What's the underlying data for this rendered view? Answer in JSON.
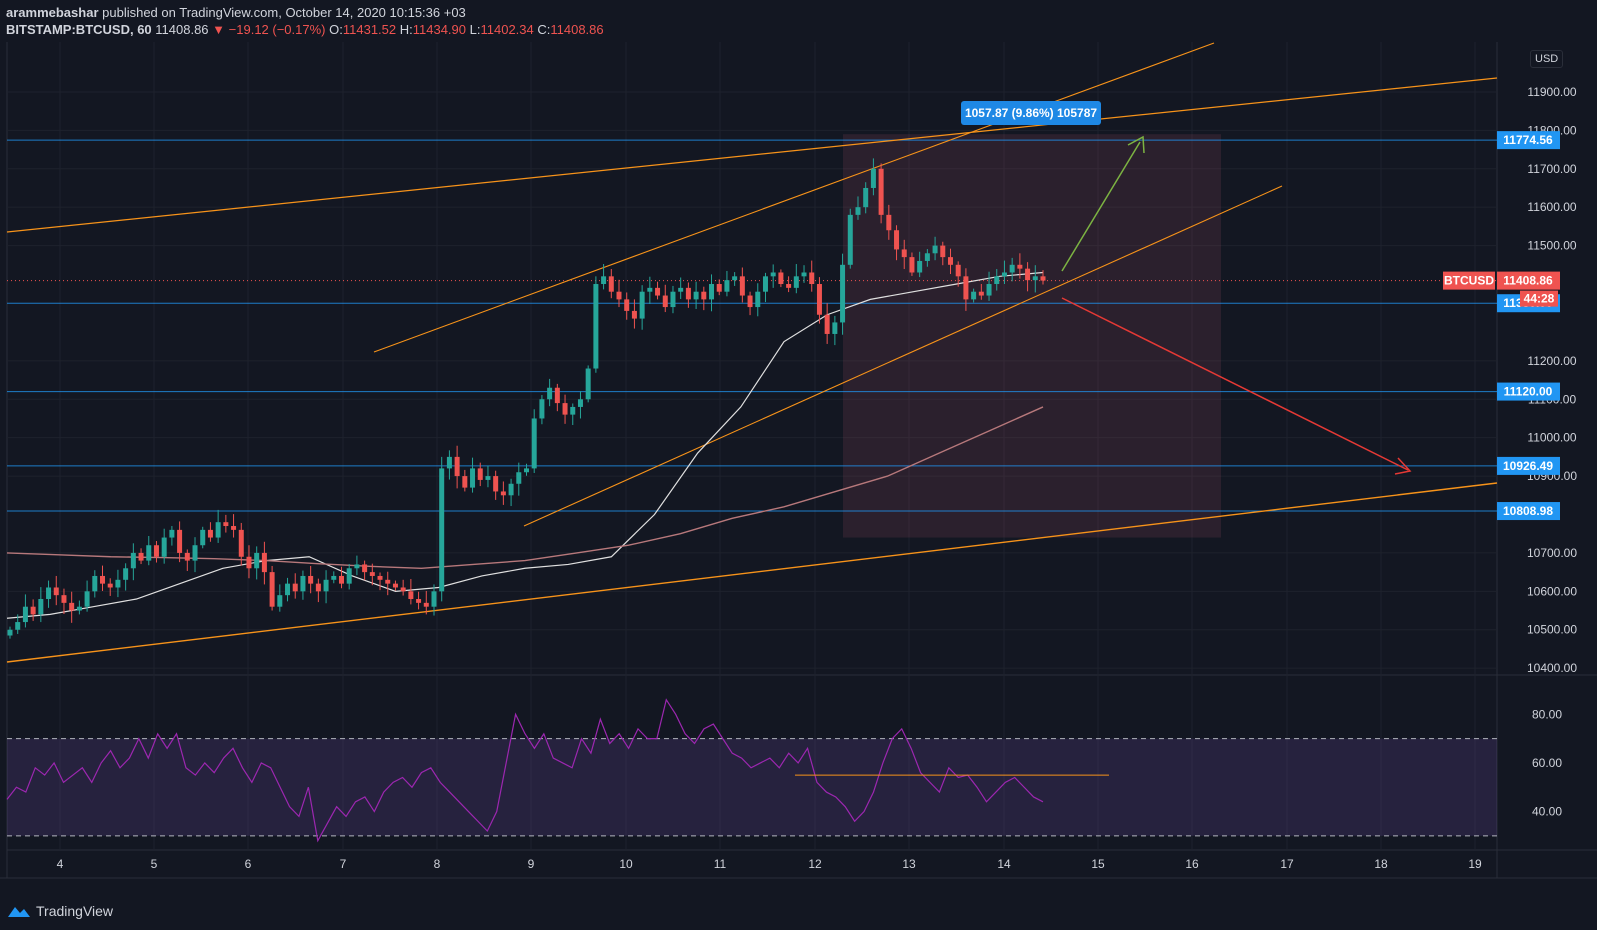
{
  "header": {
    "publisher": "arammebashar",
    "published_text": "published on TradingView.com, October 14, 2020 10:15:36 +03",
    "symbol": "BITSTAMP:BTCUSD, 60",
    "last": "11408.86",
    "change": "▼ −19.12 (−0.17%)",
    "o_label": "O:",
    "o_val": "11431.52",
    "h_label": "H:",
    "h_val": "11434.90",
    "l_label": "L:",
    "l_val": "11402.34",
    "c_label": "C:",
    "c_val": "11408.86"
  },
  "currency": "USD",
  "footer": {
    "brand": "TradingView"
  },
  "colors": {
    "bg": "#131722",
    "up": "#26a69a",
    "down": "#ef5350",
    "trend": "#f7931a",
    "level": "#2196f3",
    "rsi": "#9c27b0",
    "ma_fast": "#e0e0e0",
    "ma_slow": "#b7787b"
  },
  "chart_data": {
    "type": "candlestick",
    "timeframe": "60",
    "x_ticks": [
      "4",
      "5",
      "6",
      "7",
      "8",
      "9",
      "10",
      "11",
      "12",
      "13",
      "14",
      "15",
      "16",
      "17",
      "18",
      "19"
    ],
    "y_ticks": [
      "11900.00",
      "11800.00",
      "11700.00",
      "11600.00",
      "11500.00",
      "11200.00",
      "11100.00",
      "11000.00",
      "10900.00",
      "10700.00",
      "10600.00",
      "10500.00",
      "10400.00"
    ],
    "ylim": [
      10390,
      12030
    ],
    "price_tags": [
      {
        "label": "11774.56",
        "value": 11774.56,
        "kind": "level"
      },
      {
        "label": "11350.00",
        "value": 11350.0,
        "kind": "level"
      },
      {
        "label": "11120.00",
        "value": 11120.0,
        "kind": "level"
      },
      {
        "label": "10926.49",
        "value": 10926.49,
        "kind": "level"
      },
      {
        "label": "10808.98",
        "value": 10808.98,
        "kind": "level"
      }
    ],
    "current": {
      "symbol": "BTCUSD",
      "price": "11408.86",
      "value": 11408.86,
      "countdown": "44:28"
    },
    "range_label": "1057.87 (9.86%) 105787",
    "candles_close": [
      10500,
      10520,
      10560,
      10540,
      10580,
      10610,
      10590,
      10570,
      10550,
      10560,
      10600,
      10640,
      10620,
      10610,
      10630,
      10660,
      10700,
      10680,
      10720,
      10690,
      10740,
      10760,
      10700,
      10680,
      10720,
      10760,
      10740,
      10780,
      10770,
      10760,
      10690,
      10660,
      10700,
      10650,
      10560,
      10590,
      10620,
      10600,
      10640,
      10620,
      10600,
      10630,
      10640,
      10620,
      10660,
      10670,
      10650,
      10640,
      10630,
      10620,
      10610,
      10600,
      10580,
      10570,
      10560,
      10600,
      10920,
      10950,
      10900,
      10870,
      10920,
      10890,
      10900,
      10860,
      10850,
      10880,
      10910,
      10920,
      11050,
      11100,
      11130,
      11090,
      11060,
      11080,
      11100,
      11180,
      11400,
      11420,
      11380,
      11360,
      11330,
      11310,
      11380,
      11390,
      11370,
      11340,
      11380,
      11390,
      11360,
      11380,
      11360,
      11400,
      11380,
      11410,
      11420,
      11370,
      11340,
      11380,
      11420,
      11430,
      11400,
      11390,
      11420,
      11430,
      11400,
      11320,
      11270,
      11300,
      11450,
      11580,
      11600,
      11650,
      11700,
      11580,
      11540,
      11490,
      11470,
      11430,
      11460,
      11480,
      11500,
      11470,
      11450,
      11420,
      11360,
      11380,
      11370,
      11400,
      11420,
      11430,
      11450,
      11440,
      11410,
      11420,
      11408.86
    ],
    "ma_fast": [
      10530,
      10540,
      10560,
      10580,
      10620,
      10660,
      10680,
      10690,
      10640,
      10600,
      10610,
      10640,
      10660,
      10670,
      10690,
      10800,
      10960,
      11080,
      11250,
      11320,
      11360,
      11380,
      11400,
      11420,
      11430
    ],
    "ma_slow": [
      10700,
      10695,
      10690,
      10688,
      10685,
      10680,
      10672,
      10665,
      10660,
      10670,
      10680,
      10700,
      10720,
      10750,
      10790,
      10820,
      10860,
      10900,
      10960,
      11020,
      11080
    ],
    "rsi": {
      "ylim": [
        25,
        90
      ],
      "y_ticks": [
        "80.00",
        "60.00",
        "40.00"
      ],
      "upper": 70,
      "lower": 30,
      "values": [
        45,
        50,
        48,
        58,
        55,
        60,
        52,
        55,
        58,
        52,
        60,
        65,
        58,
        62,
        70,
        62,
        72,
        66,
        72,
        58,
        55,
        60,
        56,
        62,
        66,
        58,
        52,
        60,
        58,
        50,
        42,
        38,
        50,
        28,
        35,
        42,
        38,
        44,
        46,
        40,
        48,
        52,
        54,
        50,
        56,
        58,
        52,
        48,
        44,
        40,
        36,
        32,
        40,
        60,
        80,
        72,
        66,
        72,
        62,
        60,
        58,
        70,
        64,
        78,
        68,
        72,
        66,
        74,
        70,
        70,
        86,
        80,
        72,
        68,
        74,
        76,
        70,
        64,
        62,
        58,
        60,
        62,
        58,
        64,
        60,
        66,
        52,
        48,
        46,
        42,
        36,
        40,
        48,
        60,
        70,
        74,
        66,
        56,
        52,
        48,
        58,
        54,
        55,
        50,
        44,
        48,
        52,
        54,
        50,
        46,
        44
      ],
      "resistance": 55
    }
  }
}
